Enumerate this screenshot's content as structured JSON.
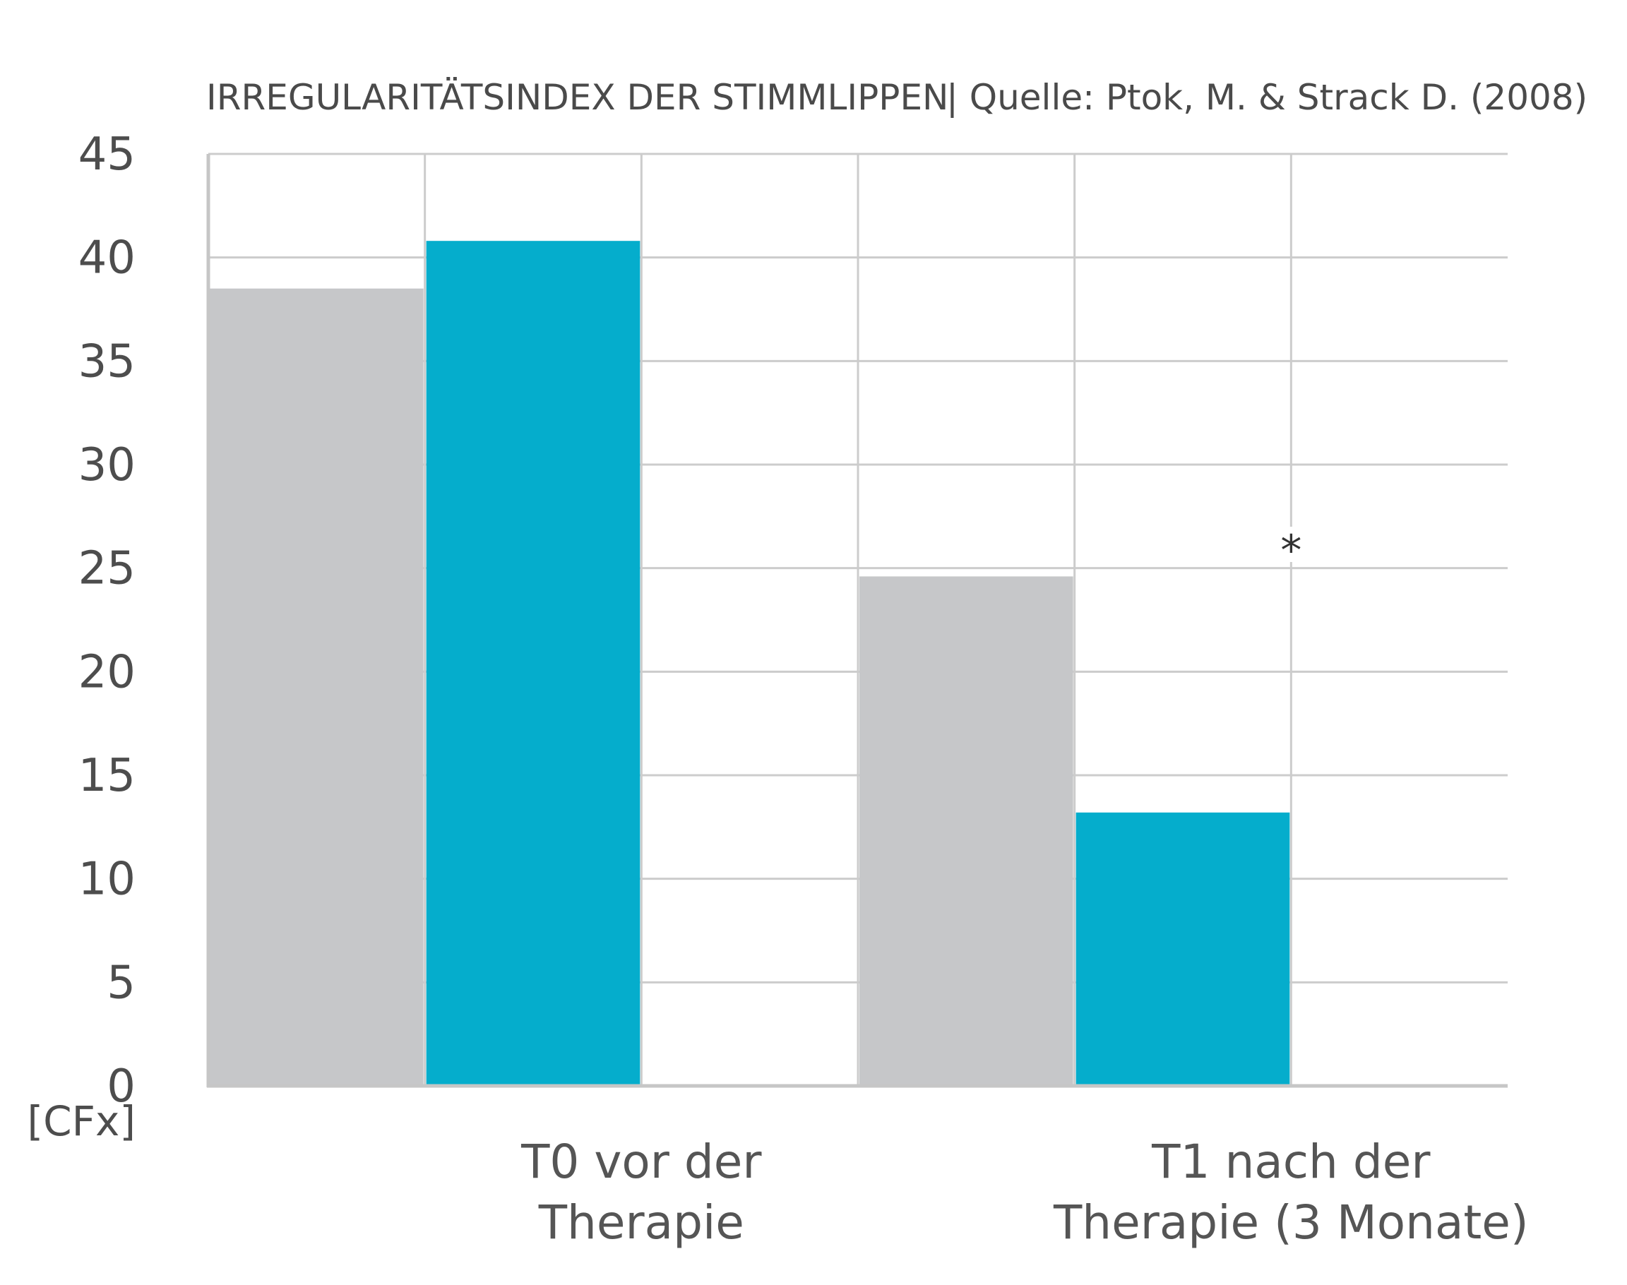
{
  "chart_data": {
    "type": "bar",
    "title": "IRREGULARITÄTSINDEX DER STIMMLIPPEN",
    "source": "| Quelle: Ptok, M. & Strack D. (2008)",
    "ylabel": "[CFx]",
    "xlabel": "",
    "ylim": [
      0,
      45
    ],
    "yticks": [
      0,
      5,
      10,
      15,
      20,
      25,
      30,
      35,
      40,
      45
    ],
    "grid": true,
    "categories": [
      [
        "T0 vor der",
        "Therapie"
      ],
      [
        "T1 nach der",
        "Therapie (3 Monate)"
      ]
    ],
    "series": [
      {
        "values": [
          38.5,
          24.6
        ],
        "color": "#c6c7c9"
      },
      {
        "values": [
          40.8,
          13.2
        ],
        "color": "#05adcc"
      }
    ],
    "annotations": [
      {
        "text": "*",
        "category": 1,
        "value": 25.5
      }
    ]
  }
}
